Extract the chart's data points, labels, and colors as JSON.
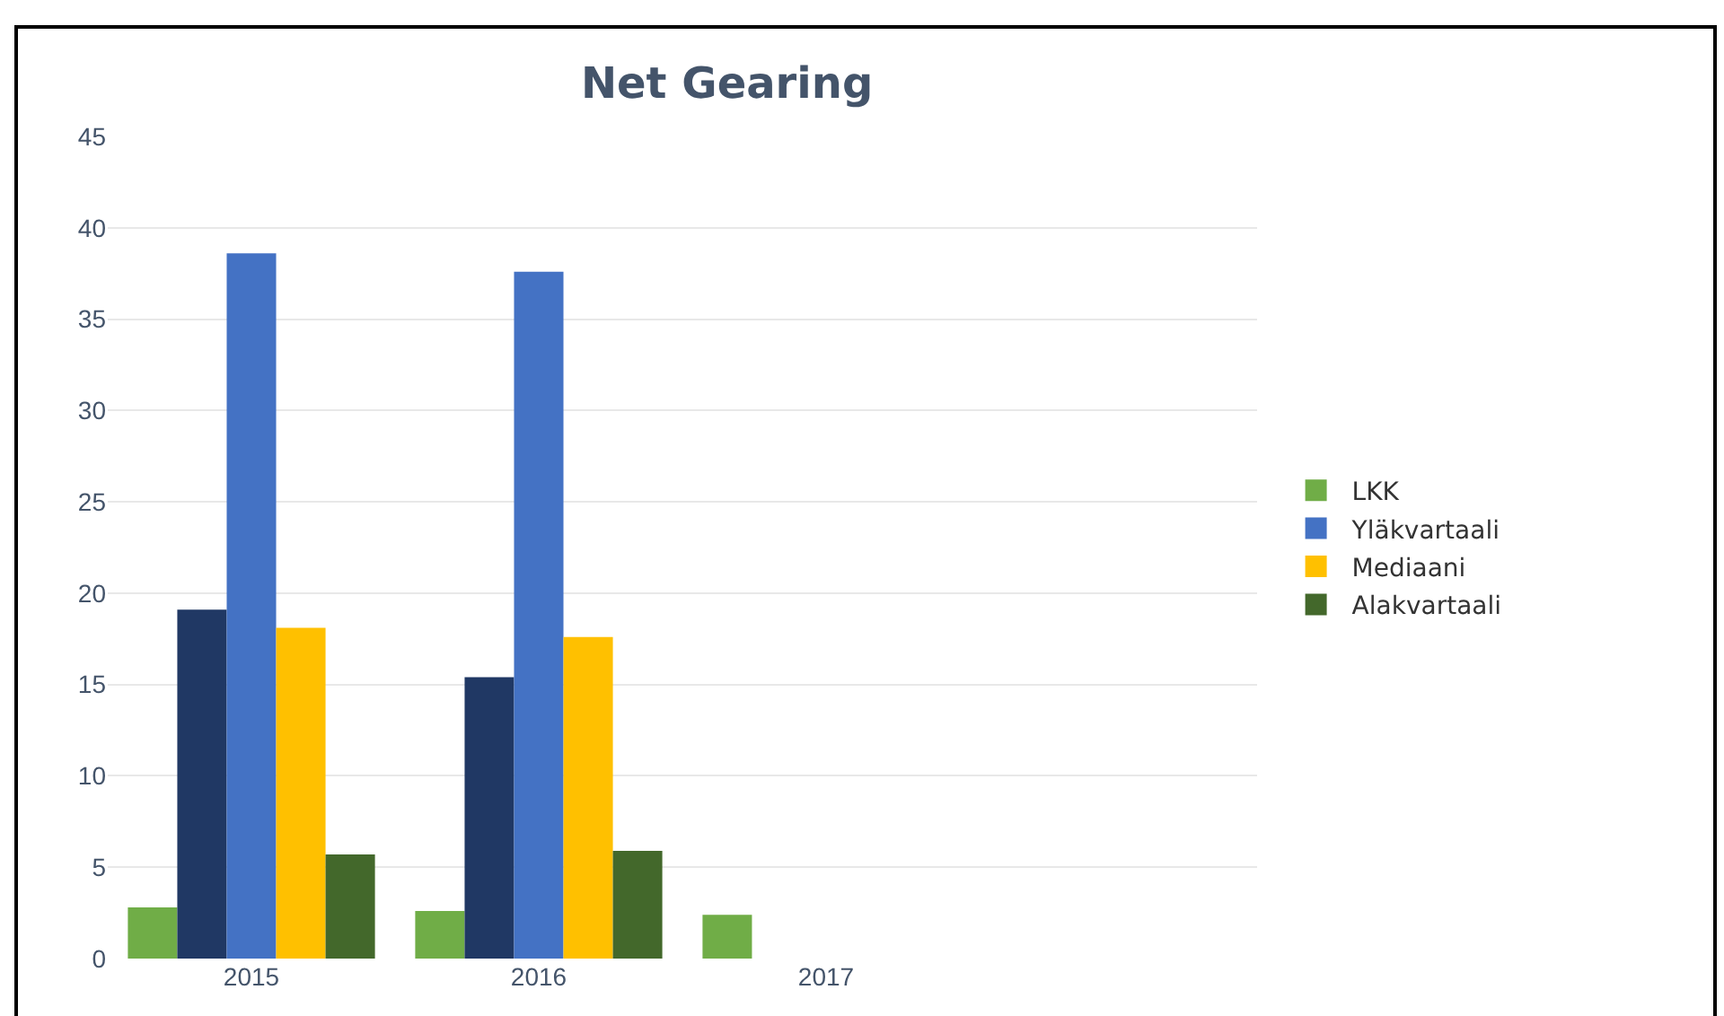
{
  "chart_data": {
    "type": "bar",
    "title": "Net Gearing",
    "categories": [
      "2015",
      "2016",
      "2017",
      null
    ],
    "series": [
      {
        "name": "LKK",
        "color": "#70ad47",
        "values": [
          2.8,
          2.6,
          2.4,
          null
        ]
      },
      {
        "color": "#203864",
        "values": [
          19.1,
          15.4,
          null,
          null
        ]
      },
      {
        "name": "Yläkvartaali",
        "color": "#4472c4",
        "values": [
          38.6,
          37.6,
          null,
          null
        ]
      },
      {
        "name": "Mediaani",
        "color": "#ffc000",
        "values": [
          18.1,
          17.6,
          null,
          null
        ]
      },
      {
        "name": "Alakvartaali",
        "color": "#43682b",
        "values": [
          5.7,
          5.9,
          null,
          null
        ]
      }
    ],
    "ylim": [
      0,
      45
    ],
    "yticks": [
      0,
      5,
      10,
      15,
      20,
      25,
      30,
      35,
      40,
      45
    ],
    "grid": "y",
    "legend": "right"
  }
}
